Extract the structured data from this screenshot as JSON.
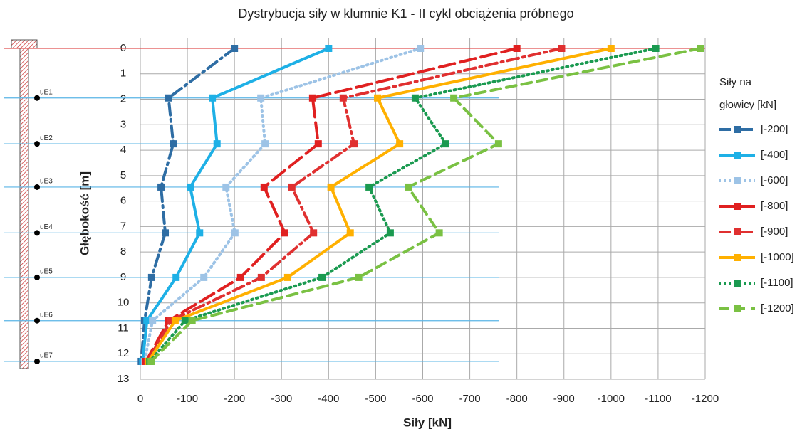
{
  "chart_data": {
    "type": "line",
    "title": "Dystrybucja siły w klumnie K1 - II cykl obciążenia próbnego",
    "xlabel": "Siły [kN]",
    "ylabel": "Głębokość [m]",
    "xlim": [
      0,
      -1200
    ],
    "xticks": [
      0,
      -100,
      -200,
      -300,
      -400,
      -500,
      -600,
      -700,
      -800,
      -900,
      -1000,
      -1100,
      -1200
    ],
    "ylim": [
      0,
      13
    ],
    "y_reversed": true,
    "yticks": [
      0,
      1,
      2,
      3,
      4,
      5,
      6,
      7,
      8,
      9,
      10,
      11,
      12,
      13
    ],
    "grid": true,
    "legend_position": "right",
    "legend_title": [
      "Siły na",
      "głowicy [kN]"
    ],
    "depths": [
      0,
      1.95,
      3.75,
      5.45,
      7.25,
      9.0,
      10.7,
      12.3
    ],
    "sensors": [
      {
        "label": "uE1",
        "depth": 1.95
      },
      {
        "label": "uE2",
        "depth": 3.75
      },
      {
        "label": "uE3",
        "depth": 5.45
      },
      {
        "label": "uE4",
        "depth": 7.25
      },
      {
        "label": "uE5",
        "depth": 9.0
      },
      {
        "label": "uE6",
        "depth": 10.7
      },
      {
        "label": "uE7",
        "depth": 12.3
      }
    ],
    "series": [
      {
        "name": "[-200]",
        "color": "#2e6da4",
        "dash": "dashdot",
        "values": [
          -200,
          -60,
          -70,
          -44,
          -53,
          -24,
          -9,
          -2
        ]
      },
      {
        "name": "[-400]",
        "color": "#1eb0e6",
        "dash": "solid",
        "values": [
          -400,
          -153,
          -163,
          -106,
          -126,
          -76,
          -14,
          -5
        ]
      },
      {
        "name": "[-600]",
        "color": "#9dc3e6",
        "dash": "dotted",
        "values": [
          -595,
          -256,
          -265,
          -182,
          -201,
          -135,
          -26,
          -9
        ]
      },
      {
        "name": "[-800]",
        "color": "#e02020",
        "dash": "longdash",
        "values": [
          -800,
          -366,
          -378,
          -263,
          -307,
          -213,
          -60,
          -12
        ]
      },
      {
        "name": "[-900]",
        "color": "#e03030",
        "dash": "dashdot",
        "values": [
          -895,
          -431,
          -454,
          -322,
          -368,
          -257,
          -65,
          -15
        ]
      },
      {
        "name": "[-1000]",
        "color": "#ffb000",
        "dash": "solid",
        "values": [
          -1000,
          -504,
          -551,
          -405,
          -446,
          -313,
          -74,
          -17
        ]
      },
      {
        "name": "[-1100]",
        "color": "#1a9a50",
        "dash": "dotted",
        "values": [
          -1095,
          -584,
          -649,
          -486,
          -531,
          -386,
          -95,
          -20
        ]
      },
      {
        "name": "[-1200]",
        "color": "#7ac143",
        "dash": "dashed",
        "values": [
          -1190,
          -666,
          -761,
          -569,
          -635,
          -464,
          -110,
          -23
        ]
      }
    ]
  }
}
